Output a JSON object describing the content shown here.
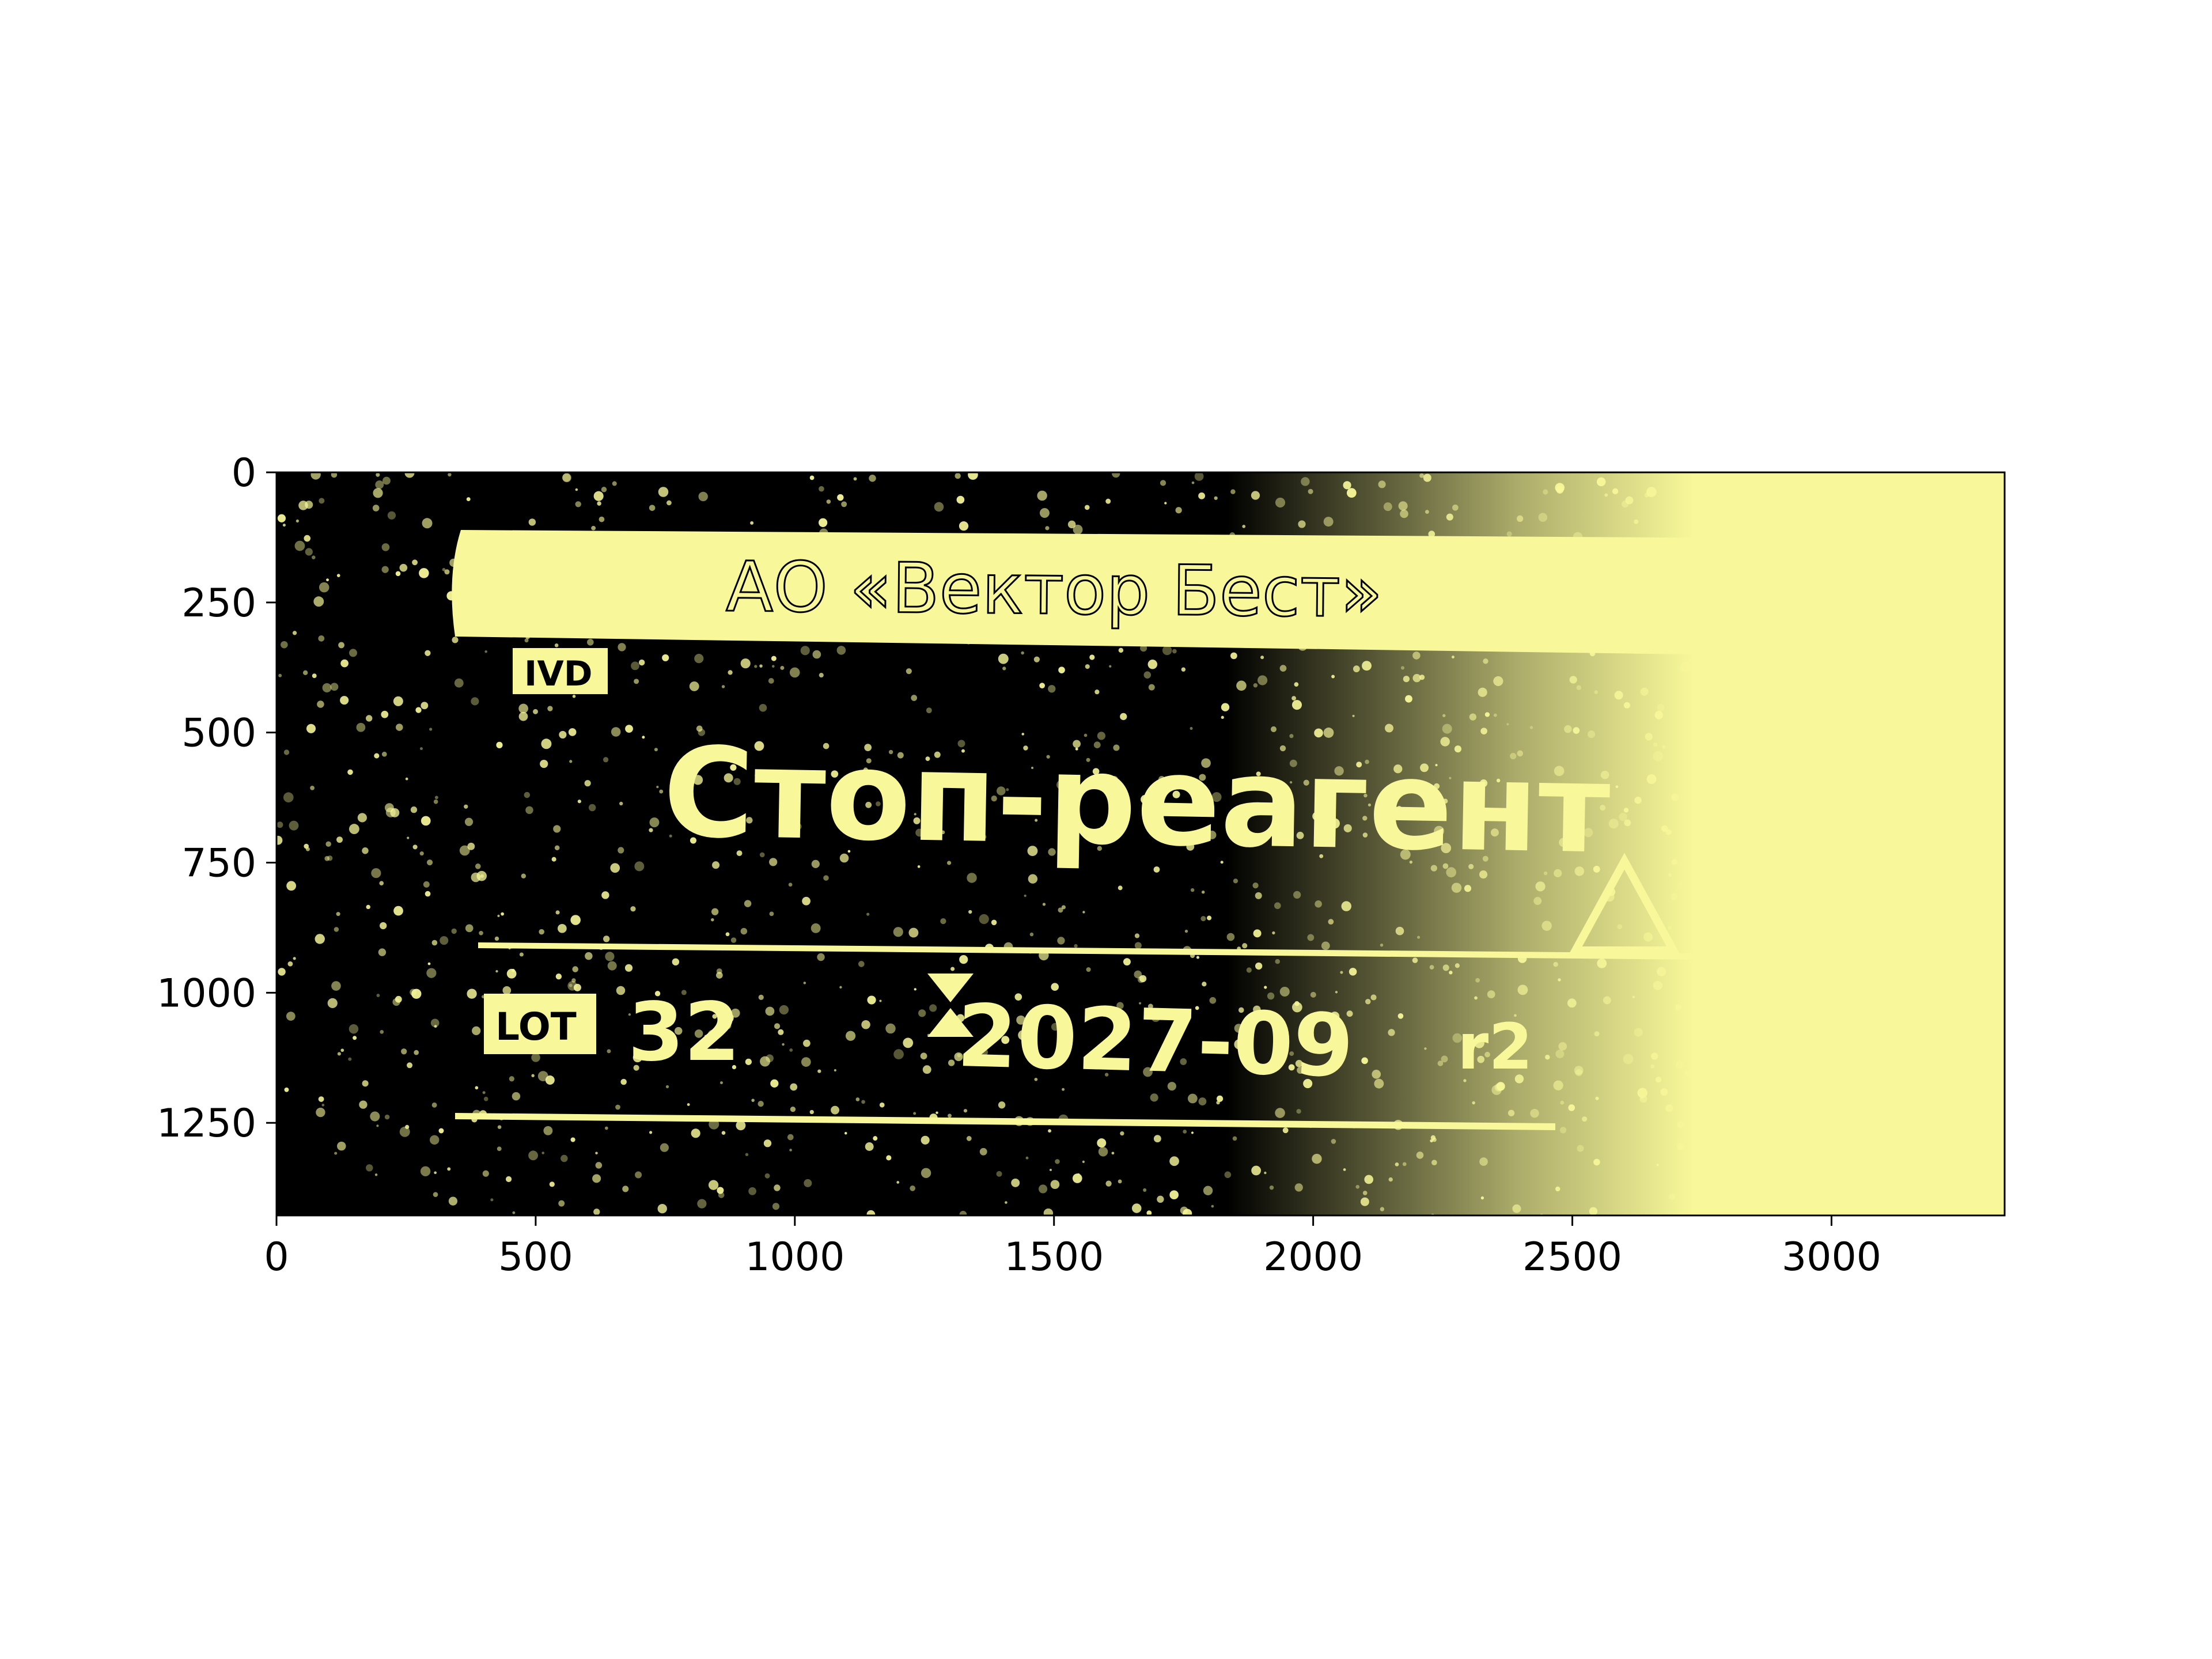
{
  "figure": {
    "image_extent": {
      "x": [
        0,
        3334
      ],
      "y": [
        0,
        1428
      ]
    },
    "colors": {
      "foreground": "#f8f89a",
      "background": "#000000",
      "axes": "#000000",
      "page": "#ffffff"
    },
    "x_axis": {
      "ticks": [
        {
          "value": 0,
          "label": "0"
        },
        {
          "value": 500,
          "label": "500"
        },
        {
          "value": 1000,
          "label": "1000"
        },
        {
          "value": 1500,
          "label": "1500"
        },
        {
          "value": 2000,
          "label": "2000"
        },
        {
          "value": 2500,
          "label": "2500"
        },
        {
          "value": 3000,
          "label": "3000"
        }
      ]
    },
    "y_axis": {
      "inverted": true,
      "ticks": [
        {
          "value": 0,
          "label": "0"
        },
        {
          "value": 250,
          "label": "250"
        },
        {
          "value": 500,
          "label": "500"
        },
        {
          "value": 750,
          "label": "750"
        },
        {
          "value": 1000,
          "label": "1000"
        },
        {
          "value": 1250,
          "label": "1250"
        }
      ]
    }
  },
  "photo": {
    "manufacturer_text": "АО «Вектор Бест»",
    "ivd_label": "IVD",
    "product_name": "Стоп-реагент",
    "lot_label": "LOT",
    "lot_number": "32",
    "expiry_date": "2027-09",
    "extra_mark": "r2"
  }
}
